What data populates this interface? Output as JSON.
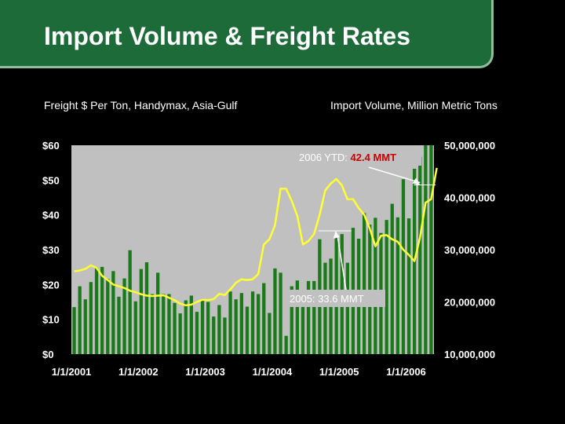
{
  "title": "Import Volume & Freight Rates",
  "left_subtitle": "Freight $ Per Ton, Handymax, Asia-Gulf",
  "right_subtitle": "Import Volume, Million Metric Tons",
  "chart_data": {
    "type": "bar",
    "left_axis": {
      "label": "Freight $ Per Ton, Handymax, Asia-Gulf",
      "ylim": [
        0,
        60
      ],
      "ticks": [
        "$0",
        "$10",
        "$20",
        "$30",
        "$40",
        "$50",
        "$60"
      ]
    },
    "right_axis": {
      "label": "Import Volume, Million Metric Tons",
      "ylim": [
        10000000,
        50000000
      ],
      "ticks": [
        "10,000,000",
        "20,000,000",
        "30,000,000",
        "40,000,000",
        "50,000,000"
      ]
    },
    "x_ticks": [
      "1/1/2001",
      "1/1/2002",
      "1/1/2003",
      "1/1/2004",
      "1/1/2005",
      "1/1/2006"
    ],
    "x_tick_index": [
      0,
      12,
      24,
      36,
      48,
      60
    ],
    "grid": false,
    "plot_background": "#c0c0c0",
    "series": [
      {
        "type": "bar",
        "axis": "right",
        "color": "#1a7a1a",
        "values": [
          19,
          23,
          20.5,
          23.8,
          26.5,
          26.7,
          24.4,
          25.9,
          21,
          24.5,
          29.9,
          20.1,
          26.3,
          27.6,
          21.5,
          25.6,
          21.5,
          21.5,
          19.8,
          17.8,
          20.3,
          21.2,
          18.1,
          20.5,
          20,
          17.2,
          19.4,
          17,
          22,
          20.5,
          21.7,
          19.1,
          22,
          21.5,
          23.6,
          17.9,
          26.4,
          25.6,
          13.5,
          23,
          24.1,
          22.1,
          24,
          24,
          32,
          27.5,
          28.3,
          33,
          33,
          27.5,
          34.2,
          32.1,
          37,
          34.8,
          36.1,
          33.2,
          35.7,
          38.8,
          36.2,
          43.5,
          36,
          45.5,
          47.8,
          51,
          51
        ]
      },
      {
        "type": "line",
        "axis": "left",
        "color": "#ffff33",
        "values": [
          23.8,
          24,
          24.5,
          25.5,
          24.8,
          22.5,
          21.3,
          20,
          19.5,
          19,
          18.2,
          17.8,
          17.2,
          16.8,
          16.7,
          16.8,
          16.9,
          16.2,
          15.5,
          14.5,
          14,
          14.2,
          15,
          15.6,
          15.5,
          15.8,
          17.3,
          17,
          18.6,
          20.5,
          21.5,
          21.3,
          21.5,
          23,
          31.5,
          33,
          37,
          47.5,
          47.5,
          44,
          39.7,
          31.5,
          32.5,
          34.5,
          40,
          47,
          49,
          50.3,
          48.5,
          44.5,
          44.5,
          42,
          40,
          36,
          31,
          34,
          34.2,
          33,
          32.3,
          30,
          28.5,
          26.7,
          33.5,
          43.5,
          44.5,
          53.5
        ]
      }
    ],
    "annotations": [
      {
        "text": "2006 YTD:",
        "highlight": "42.4 MMT",
        "highlight_color": "#cc0000",
        "target_value": 42.4,
        "target_index": 62
      },
      {
        "text": "2005: 33.6 MMT",
        "target_value": 33.6,
        "target_index": 48
      }
    ]
  }
}
